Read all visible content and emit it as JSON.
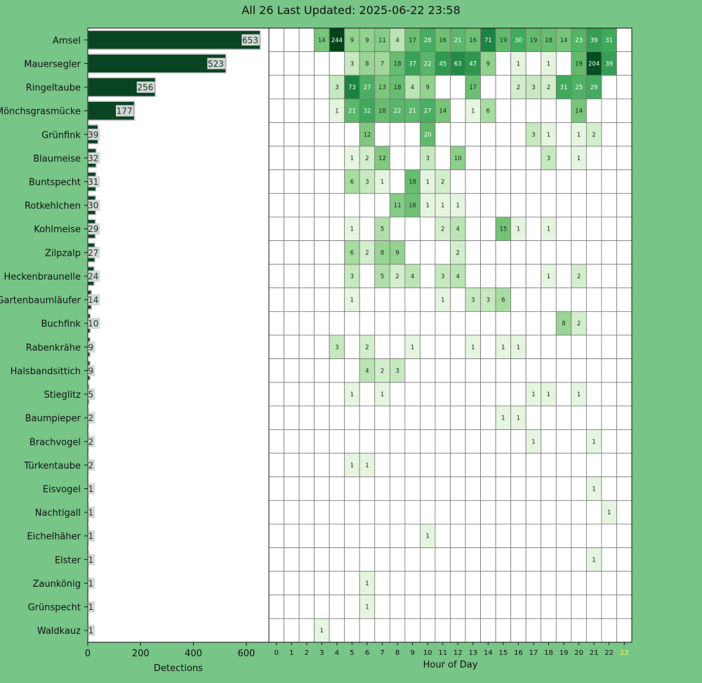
{
  "title": "All 26 Last Updated: 2025-06-22 23:58",
  "colors": {
    "background": "#77c587",
    "bar": "#0a4523",
    "bar_label_bg": "#d6d6d6",
    "grid": "#777777",
    "current_hour_tick": "#ecf75d"
  },
  "chart_data": [
    {
      "type": "bar",
      "orientation": "horizontal",
      "xlabel": "Detections",
      "xlim": [
        0,
        680
      ],
      "xticks": [
        0,
        200,
        400,
        600
      ],
      "categories": [
        "Amsel",
        "Mauersegler",
        "Ringeltaube",
        "Mönchsgrasmücke",
        "Grünfink",
        "Blaumeise",
        "Buntspecht",
        "Rotkehlchen",
        "Kohlmeise",
        "Zilpzalp",
        "Heckenbraunelle",
        "Gartenbaumläufer",
        "Buchfink",
        "Rabenkrähe",
        "Halsbandsittich",
        "Stieglitz",
        "Baumpieper",
        "Brachvogel",
        "Türkentaube",
        "Eisvogel",
        "Nachtigall",
        "Eichelhäher",
        "Elster",
        "Zaunkönig",
        "Grünspecht",
        "Waldkauz"
      ],
      "values": [
        653,
        523,
        256,
        177,
        39,
        32,
        31,
        30,
        29,
        27,
        24,
        14,
        10,
        9,
        9,
        5,
        2,
        2,
        2,
        1,
        1,
        1,
        1,
        1,
        1,
        1
      ]
    },
    {
      "type": "heatmap",
      "xlabel": "Hour of Day",
      "x": [
        "0",
        "1",
        "2",
        "3",
        "4",
        "5",
        "6",
        "7",
        "8",
        "9",
        "10",
        "11",
        "12",
        "13",
        "14",
        "15",
        "16",
        "17",
        "18",
        "19",
        "20",
        "21",
        "22",
        "23"
      ],
      "highlight_x": "23",
      "rows": [
        [
          null,
          null,
          null,
          14,
          244,
          9,
          9,
          11,
          4,
          17,
          28,
          16,
          21,
          16,
          71,
          19,
          30,
          19,
          18,
          14,
          23,
          39,
          31,
          null
        ],
        [
          null,
          null,
          null,
          null,
          null,
          3,
          8,
          7,
          18,
          37,
          22,
          45,
          63,
          47,
          9,
          null,
          1,
          null,
          1,
          null,
          19,
          204,
          39,
          null
        ],
        [
          null,
          null,
          null,
          null,
          3,
          73,
          27,
          13,
          18,
          4,
          9,
          null,
          null,
          17,
          null,
          null,
          2,
          3,
          2,
          31,
          25,
          29,
          null,
          null
        ],
        [
          null,
          null,
          null,
          null,
          1,
          21,
          32,
          18,
          22,
          21,
          27,
          14,
          null,
          1,
          6,
          null,
          null,
          null,
          null,
          null,
          14,
          null,
          null,
          null
        ],
        [
          null,
          null,
          null,
          null,
          null,
          null,
          12,
          null,
          null,
          null,
          20,
          null,
          null,
          null,
          null,
          null,
          null,
          3,
          1,
          null,
          1,
          2,
          null,
          null
        ],
        [
          null,
          null,
          null,
          null,
          null,
          1,
          2,
          12,
          null,
          null,
          3,
          null,
          10,
          null,
          null,
          null,
          null,
          null,
          3,
          null,
          1,
          null,
          null,
          null
        ],
        [
          null,
          null,
          null,
          null,
          null,
          6,
          3,
          1,
          null,
          18,
          1,
          2,
          null,
          null,
          null,
          null,
          null,
          null,
          null,
          null,
          null,
          null,
          null,
          null
        ],
        [
          null,
          null,
          null,
          null,
          null,
          null,
          null,
          null,
          11,
          16,
          1,
          1,
          1,
          null,
          null,
          null,
          null,
          null,
          null,
          null,
          null,
          null,
          null,
          null
        ],
        [
          null,
          null,
          null,
          null,
          null,
          1,
          null,
          5,
          null,
          null,
          null,
          2,
          4,
          null,
          null,
          15,
          1,
          null,
          1,
          null,
          null,
          null,
          null,
          null
        ],
        [
          null,
          null,
          null,
          null,
          null,
          6,
          2,
          8,
          9,
          null,
          null,
          null,
          2,
          null,
          null,
          null,
          null,
          null,
          null,
          null,
          null,
          null,
          null,
          null
        ],
        [
          null,
          null,
          null,
          null,
          null,
          3,
          null,
          5,
          2,
          4,
          null,
          3,
          4,
          null,
          null,
          null,
          null,
          null,
          1,
          null,
          2,
          null,
          null,
          null
        ],
        [
          null,
          null,
          null,
          null,
          null,
          1,
          null,
          null,
          null,
          null,
          null,
          1,
          null,
          3,
          3,
          6,
          null,
          null,
          null,
          null,
          null,
          null,
          null,
          null
        ],
        [
          null,
          null,
          null,
          null,
          null,
          null,
          null,
          null,
          null,
          null,
          null,
          null,
          null,
          null,
          null,
          null,
          null,
          null,
          null,
          8,
          2,
          null,
          null,
          null
        ],
        [
          null,
          null,
          null,
          null,
          3,
          null,
          2,
          null,
          null,
          1,
          null,
          null,
          null,
          1,
          null,
          1,
          1,
          null,
          null,
          null,
          null,
          null,
          null,
          null
        ],
        [
          null,
          null,
          null,
          null,
          null,
          null,
          4,
          2,
          3,
          null,
          null,
          null,
          null,
          null,
          null,
          null,
          null,
          null,
          null,
          null,
          null,
          null,
          null,
          null
        ],
        [
          null,
          null,
          null,
          null,
          null,
          1,
          null,
          1,
          null,
          null,
          null,
          null,
          null,
          null,
          null,
          null,
          null,
          1,
          1,
          null,
          1,
          null,
          null,
          null
        ],
        [
          null,
          null,
          null,
          null,
          null,
          null,
          null,
          null,
          null,
          null,
          null,
          null,
          null,
          null,
          null,
          1,
          1,
          null,
          null,
          null,
          null,
          null,
          null,
          null
        ],
        [
          null,
          null,
          null,
          null,
          null,
          null,
          null,
          null,
          null,
          null,
          null,
          null,
          null,
          null,
          null,
          null,
          null,
          1,
          null,
          null,
          null,
          1,
          null,
          null
        ],
        [
          null,
          null,
          null,
          null,
          null,
          1,
          1,
          null,
          null,
          null,
          null,
          null,
          null,
          null,
          null,
          null,
          null,
          null,
          null,
          null,
          null,
          null,
          null,
          null
        ],
        [
          null,
          null,
          null,
          null,
          null,
          null,
          null,
          null,
          null,
          null,
          null,
          null,
          null,
          null,
          null,
          null,
          null,
          null,
          null,
          null,
          null,
          1,
          null,
          null
        ],
        [
          null,
          null,
          null,
          null,
          null,
          null,
          null,
          null,
          null,
          null,
          null,
          null,
          null,
          null,
          null,
          null,
          null,
          null,
          null,
          null,
          null,
          null,
          1,
          null
        ],
        [
          null,
          null,
          null,
          null,
          null,
          null,
          null,
          null,
          null,
          null,
          1,
          null,
          null,
          null,
          null,
          null,
          null,
          null,
          null,
          null,
          null,
          null,
          null,
          null
        ],
        [
          null,
          null,
          null,
          null,
          null,
          null,
          null,
          null,
          null,
          null,
          null,
          null,
          null,
          null,
          null,
          null,
          null,
          null,
          null,
          null,
          null,
          1,
          null,
          null
        ],
        [
          null,
          null,
          null,
          null,
          null,
          null,
          1,
          null,
          null,
          null,
          null,
          null,
          null,
          null,
          null,
          null,
          null,
          null,
          null,
          null,
          null,
          null,
          null,
          null
        ],
        [
          null,
          null,
          null,
          null,
          null,
          null,
          1,
          null,
          null,
          null,
          null,
          null,
          null,
          null,
          null,
          null,
          null,
          null,
          null,
          null,
          null,
          null,
          null,
          null
        ],
        [
          null,
          null,
          null,
          1,
          null,
          null,
          null,
          null,
          null,
          null,
          null,
          null,
          null,
          null,
          null,
          null,
          null,
          null,
          null,
          null,
          null,
          null,
          null,
          null
        ]
      ]
    }
  ]
}
